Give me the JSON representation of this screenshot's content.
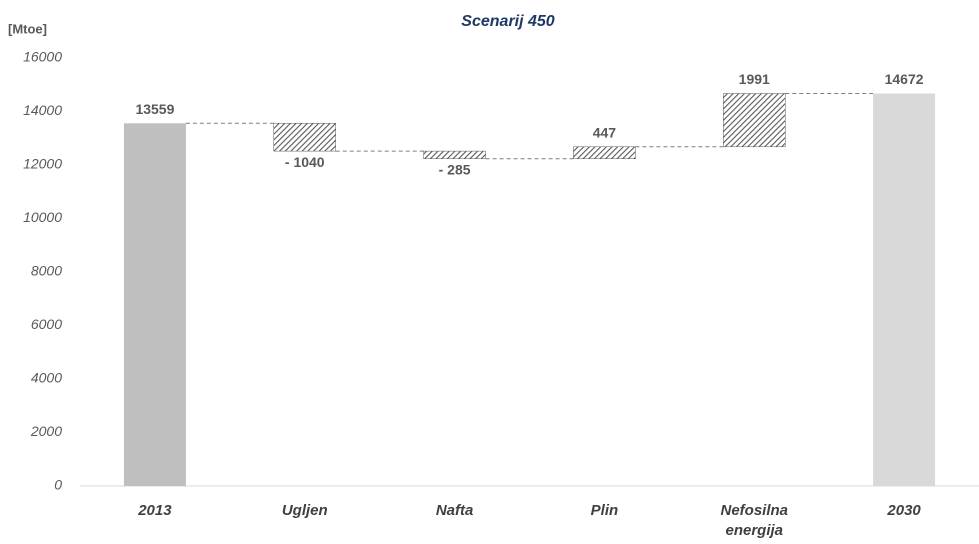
{
  "chart_data": {
    "type": "waterfall",
    "title": "Scenarij 450",
    "y_label": "[Mtoe]",
    "categories": [
      "2013",
      "Ugljen",
      "Nafta",
      "Plin",
      "Nefosilna energija",
      "2030"
    ],
    "values": [
      13559,
      -1040,
      -285,
      447,
      1991,
      14672
    ],
    "value_labels": [
      "13559",
      "- 1040",
      "- 285",
      "447",
      "1991",
      "14672"
    ],
    "colors": [
      "#bfbfbf",
      "#595959",
      "#595959",
      "#595959",
      "#595959",
      "#d9d9d9"
    ],
    "ylim": [
      0,
      16000
    ],
    "yticks": [
      0,
      2000,
      4000,
      6000,
      8000,
      10000,
      12000,
      14000,
      16000
    ],
    "grid": false
  }
}
